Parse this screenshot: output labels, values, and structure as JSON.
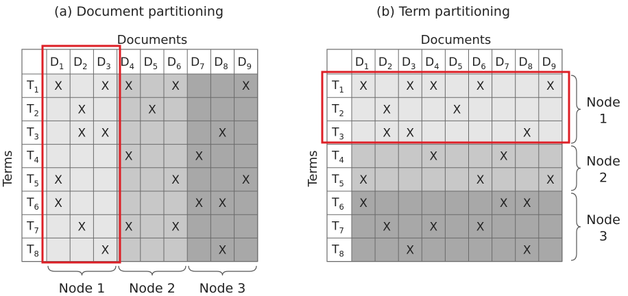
{
  "left": {
    "caption": "(a) Document partitioning",
    "docs_label": "Documents",
    "terms_label": "Terms",
    "node_labels": [
      "Node 1",
      "Node 2",
      "Node 3"
    ]
  },
  "right": {
    "caption": "(b) Term partitioning",
    "docs_label": "Documents",
    "terms_label": "Terms",
    "node_labels": [
      [
        "Node",
        "1"
      ],
      [
        "Node",
        "2"
      ],
      [
        "Node",
        "3"
      ]
    ]
  },
  "documents": [
    "D1",
    "D2",
    "D3",
    "D4",
    "D5",
    "D6",
    "D7",
    "D8",
    "D9"
  ],
  "terms": [
    "T1",
    "T2",
    "T3",
    "T4",
    "T5",
    "T6",
    "T7",
    "T8"
  ],
  "matrix": [
    [
      1,
      0,
      1,
      1,
      0,
      1,
      0,
      0,
      1
    ],
    [
      0,
      1,
      0,
      0,
      1,
      0,
      0,
      0,
      0
    ],
    [
      0,
      1,
      1,
      0,
      0,
      0,
      0,
      1,
      0
    ],
    [
      0,
      0,
      0,
      1,
      0,
      0,
      1,
      0,
      0
    ],
    [
      1,
      0,
      0,
      0,
      0,
      1,
      0,
      0,
      1
    ],
    [
      1,
      0,
      0,
      0,
      0,
      0,
      1,
      1,
      0
    ],
    [
      0,
      1,
      0,
      1,
      0,
      1,
      0,
      0,
      0
    ],
    [
      0,
      0,
      1,
      0,
      0,
      0,
      0,
      1,
      0
    ]
  ],
  "mark": "X",
  "colors": {
    "node1": "#e6e6e6",
    "node2": "#c8c8c8",
    "node3": "#a8a8a8",
    "grid": "#6a6a6a",
    "highlight": "#dd1f26",
    "text": "#222222"
  }
}
